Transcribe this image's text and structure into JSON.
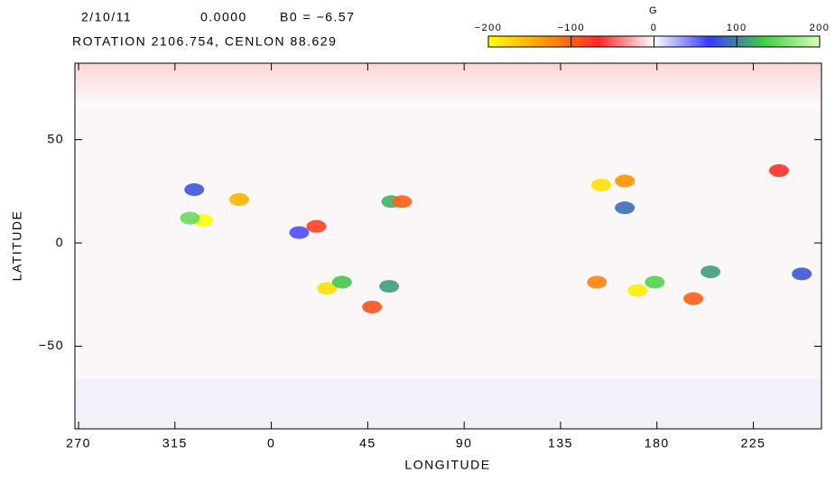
{
  "chart_data": {
    "type": "heatmap",
    "header": [
      "2/10/11",
      "0.0000",
      "B0 = −6.57"
    ],
    "subheader": "ROTATION 2106.754, CENLON 88.629",
    "xlabel": "LONGITUDE",
    "ylabel": "LATITUDE",
    "xlim": [
      268.3,
      616.8
    ],
    "ylim": [
      -90,
      87
    ],
    "xticks": [
      270,
      315,
      {
        "value": 360,
        "label": "0"
      },
      {
        "value": 405,
        "label": "45"
      },
      {
        "value": 450,
        "label": "90"
      },
      {
        "value": 495,
        "label": "135"
      },
      {
        "value": 540,
        "label": "180"
      },
      {
        "value": 585,
        "label": "225"
      }
    ],
    "yticks": [
      {
        "value": -50,
        "label": "−50"
      },
      0,
      50
    ],
    "colorbar": {
      "label": "G",
      "lim": [
        -200,
        200
      ],
      "ticks": [
        {
          "value": -200,
          "label": "−200"
        },
        {
          "value": -100,
          "label": "−100"
        },
        0,
        100,
        200
      ],
      "colors": [
        "#ffff00",
        "#ff9a00",
        "#ff2a2a",
        "#ffffff",
        "#3a3aff",
        "#40d040",
        "#d8ffb8"
      ]
    },
    "spots": {
      "x": [
        324,
        345,
        328,
        322,
        373,
        381,
        416,
        421,
        386,
        393,
        415,
        407,
        514,
        525,
        525,
        531,
        539,
        557,
        565,
        512,
        607.6,
        597
      ],
      "y": [
        25.8,
        21,
        11,
        12,
        5,
        8,
        20,
        20,
        -22,
        -19,
        -21,
        -31,
        28,
        30,
        17,
        -23,
        -19,
        -27,
        -14,
        -19,
        -15,
        35
      ],
      "values": [
        80,
        -150,
        -200,
        150,
        60,
        -80,
        120,
        -100,
        -180,
        130,
        110,
        -90,
        -180,
        -130,
        90,
        -190,
        140,
        -100,
        110,
        -120,
        80,
        -70
      ]
    }
  }
}
